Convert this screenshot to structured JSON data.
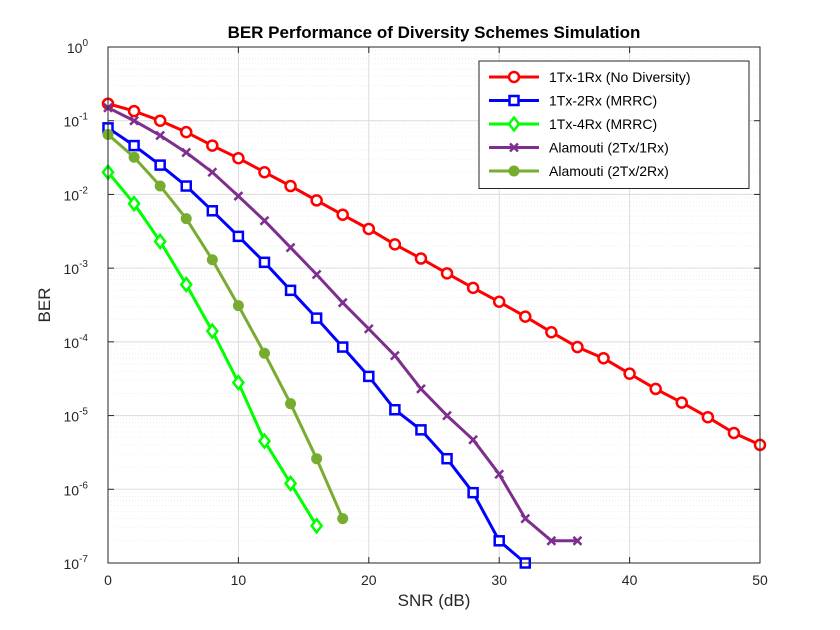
{
  "chart_data": {
    "type": "line",
    "title": "BER Performance of Diversity Schemes Simulation",
    "xlabel": "SNR (dB)",
    "ylabel": "BER",
    "xlim": [
      0,
      50
    ],
    "ylim": [
      1e-07,
      1
    ],
    "yscale": "log",
    "grid": true,
    "legend_position": "top-right",
    "x_ticks": [
      "0",
      "10",
      "20",
      "30",
      "40",
      "50"
    ],
    "y_ticks": [
      {
        "base": "10",
        "exp": "0"
      },
      {
        "base": "10",
        "exp": "-1"
      },
      {
        "base": "10",
        "exp": "-2"
      },
      {
        "base": "10",
        "exp": "-3"
      },
      {
        "base": "10",
        "exp": "-4"
      },
      {
        "base": "10",
        "exp": "-5"
      },
      {
        "base": "10",
        "exp": "-6"
      },
      {
        "base": "10",
        "exp": "-7"
      }
    ],
    "series": [
      {
        "name": "1Tx-1Rx (No Diversity)",
        "color": "#ff0000",
        "marker": "circle",
        "x": [
          0,
          2,
          4,
          6,
          8,
          10,
          12,
          14,
          16,
          18,
          20,
          22,
          24,
          26,
          28,
          30,
          32,
          34,
          36,
          38,
          40,
          42,
          44,
          46,
          48,
          50
        ],
        "y": [
          0.17,
          0.135,
          0.1,
          0.07,
          0.046,
          0.031,
          0.02,
          0.013,
          0.0083,
          0.0053,
          0.0034,
          0.0021,
          0.00135,
          0.00085,
          0.00054,
          0.00035,
          0.00022,
          0.000135,
          8.5e-05,
          6e-05,
          3.7e-05,
          2.3e-05,
          1.5e-05,
          9.5e-06,
          5.8e-06,
          4e-06
        ]
      },
      {
        "name": "1Tx-2Rx (MRRC)",
        "color": "#0000ff",
        "marker": "square",
        "x": [
          0,
          2,
          4,
          6,
          8,
          10,
          12,
          14,
          16,
          18,
          20,
          22,
          24,
          26,
          28,
          30,
          32
        ],
        "y": [
          0.08,
          0.046,
          0.025,
          0.013,
          0.006,
          0.0027,
          0.0012,
          0.0005,
          0.00021,
          8.5e-05,
          3.4e-05,
          1.2e-05,
          6.4e-06,
          2.6e-06,
          9e-07,
          2e-07,
          1e-07
        ]
      },
      {
        "name": "1Tx-4Rx (MRRC)",
        "color": "#00ff00",
        "marker": "diamond",
        "x": [
          0,
          2,
          4,
          6,
          8,
          10,
          12,
          14,
          16
        ],
        "y": [
          0.02,
          0.0075,
          0.0023,
          0.0006,
          0.00014,
          2.8e-05,
          4.5e-06,
          1.2e-06,
          3.2e-07
        ]
      },
      {
        "name": "Alamouti (2Tx/1Rx)",
        "color": "#7e2f8e",
        "marker": "x",
        "x": [
          0,
          2,
          4,
          6,
          8,
          10,
          12,
          14,
          16,
          18,
          20,
          22,
          24,
          26,
          28,
          30,
          32,
          34,
          36
        ],
        "y": [
          0.15,
          0.1,
          0.063,
          0.037,
          0.02,
          0.0095,
          0.0044,
          0.0019,
          0.00082,
          0.00034,
          0.00015,
          6.5e-05,
          2.3e-05,
          1e-05,
          4.7e-06,
          1.6e-06,
          4e-07,
          2e-07,
          2e-07
        ]
      },
      {
        "name": "Alamouti (2Tx/2Rx)",
        "color": "#77ac30",
        "marker": "dot",
        "x": [
          0,
          2,
          4,
          6,
          8,
          10,
          12,
          14,
          16,
          18
        ],
        "y": [
          0.065,
          0.032,
          0.013,
          0.0047,
          0.0013,
          0.00031,
          7e-05,
          1.45e-05,
          2.6e-06,
          4e-07
        ]
      }
    ]
  }
}
